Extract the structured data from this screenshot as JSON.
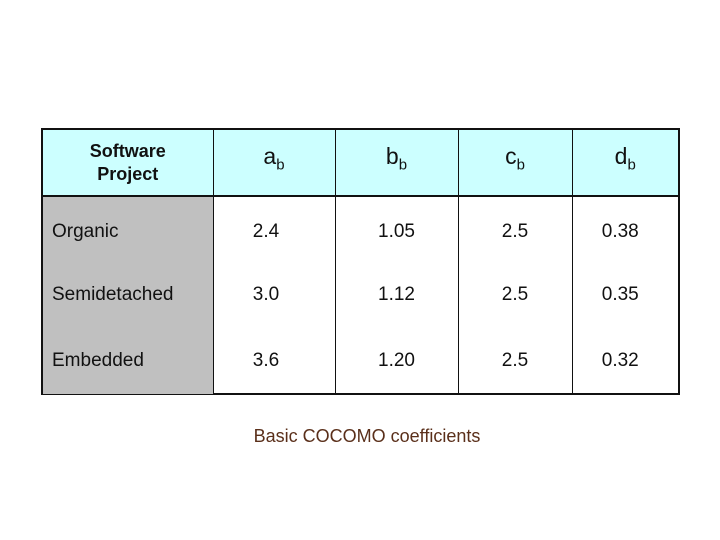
{
  "table": {
    "header": {
      "project_line1": "Software",
      "project_line2": "Project",
      "coefficients": [
        {
          "letter": "a",
          "sub": "b"
        },
        {
          "letter": "b",
          "sub": "b"
        },
        {
          "letter": "c",
          "sub": "b"
        },
        {
          "letter": "d",
          "sub": "b"
        }
      ]
    },
    "rows": [
      {
        "project": "Organic",
        "a": "2.4",
        "b": "1.05",
        "c": "2.5",
        "d": "0.38"
      },
      {
        "project": "Semidetached",
        "a": "3.0",
        "b": "1.12",
        "c": "2.5",
        "d": "0.35"
      },
      {
        "project": "Embedded",
        "a": "3.6",
        "b": "1.20",
        "c": "2.5",
        "d": "0.32"
      }
    ]
  },
  "caption": "Basic COCOMO coefficients",
  "colors": {
    "header_bg": "#ccffff",
    "project_col_bg": "#c0c0c0",
    "caption": "#5a2f1a",
    "border": "#111111"
  }
}
